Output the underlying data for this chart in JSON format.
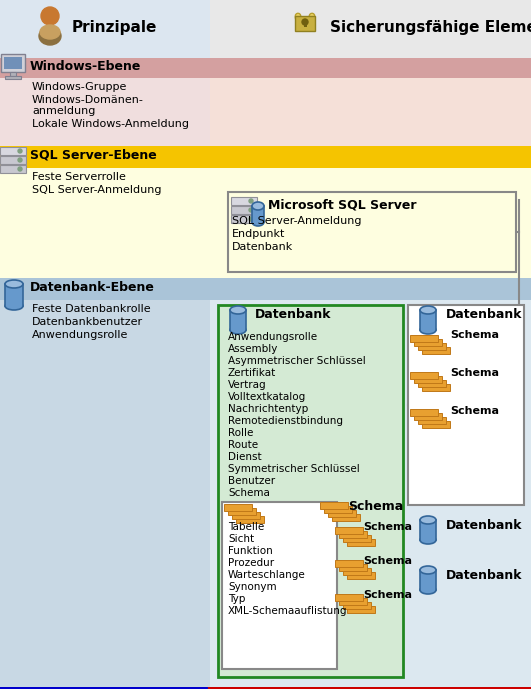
{
  "bg_color": "#ffffff",
  "left_panel_bg": "#c8d8e8",
  "right_panel_bg": "#f0ebe5",
  "header_left_bg": "#dce6f0",
  "header_right_bg": "#e8e8e8",
  "windows_band_bg": "#d4a0a0",
  "windows_content_left_bg": "#f0dede",
  "windows_content_right_bg": "#f5e0d8",
  "sql_band_bg": "#f5c400",
  "sql_content_bg": "#fefee0",
  "db_band_bg": "#aac4d8",
  "db_content_left_bg": "#c8d8e4",
  "db_content_right_bg": "#dce8f0",
  "green_box_bg": "#d4ead4",
  "white_box_bg": "#ffffff",
  "schema_icon_color": "#e8a030",
  "schema_icon_edge": "#c07818",
  "cylinder_color": "#6699cc",
  "cylinder_top": "#99bbdd",
  "cylinder_edge": "#336699",
  "left_border": "#0000cc",
  "right_border": "#cc0000",
  "gray_border": "#888888",
  "green_border": "#228822",
  "title_left": "Prinzipale",
  "title_right": "Sicherungsfähige Elemente",
  "windows_title": "Windows-Ebene",
  "windows_items": [
    "Windows-Gruppe",
    "Windows-Domänen-",
    "anmeldung",
    "Lokale Windows-Anmeldung"
  ],
  "sql_title": "SQL Server-Ebene",
  "sql_items": [
    "Feste Serverrolle",
    "SQL Server-Anmeldung"
  ],
  "db_title": "Datenbank-Ebene",
  "db_items": [
    "Feste Datenbankrolle",
    "Datenbankbenutzer",
    "Anwendungsrolle"
  ],
  "ms_sql_title": "Microsoft SQL Server",
  "ms_sql_items": [
    "SQL Server-Anmeldung",
    "Endpunkt",
    "Datenbank"
  ],
  "db_main_title": "Datenbank",
  "db_main_items": [
    "Anwendungsrolle",
    "Assembly",
    "Asymmetrischer Schlüssel",
    "Zertifikat",
    "Vertrag",
    "Volltextkatalog",
    "Nachrichtentyp",
    "Remotedienstbindung",
    "Rolle",
    "Route",
    "Dienst",
    "Symmetrischer Schlüssel",
    "Benutzer",
    "Schema"
  ],
  "schema_items": [
    "Tabelle",
    "Sicht",
    "Funktion",
    "Prozedur",
    "Warteschlange",
    "Synonym",
    "Typ",
    "XML-Schemaauflistung"
  ],
  "datenbank_label": "Datenbank",
  "schema_label": "Schema",
  "figsize": [
    5.31,
    6.89
  ],
  "dpi": 100
}
